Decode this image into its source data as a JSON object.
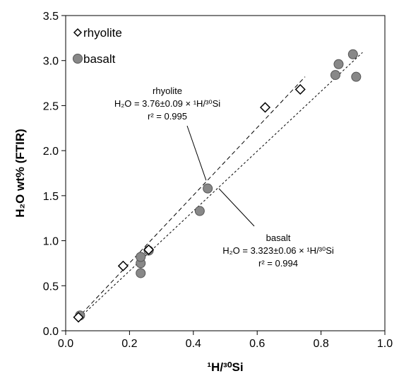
{
  "chart_data": {
    "type": "scatter",
    "xlabel": "¹H/³⁰Si",
    "ylabel": "H₂O wt% (FTIR)",
    "xlim": [
      0,
      1.0
    ],
    "ylim": [
      0,
      3.5
    ],
    "x_ticks": [
      0,
      0.2,
      0.4,
      0.6,
      0.8,
      1.0
    ],
    "x_tick_labels": [
      "0.0",
      "0.2",
      "0.4",
      "0.6",
      "0.8",
      "1.0"
    ],
    "y_ticks": [
      0,
      0.5,
      1.0,
      1.5,
      2.0,
      2.5,
      3.0,
      3.5
    ],
    "y_tick_labels": [
      "0.0",
      "0.5",
      "1.0",
      "1.5",
      "2.0",
      "2.5",
      "3.0",
      "3.5"
    ],
    "grid": false,
    "legend_position": "top-left",
    "series": [
      {
        "name": "rhyolite",
        "marker": "diamond",
        "fill": "#ffffff",
        "stroke": "#000000",
        "x": [
          0.04,
          0.18,
          0.26,
          0.625,
          0.735
        ],
        "y": [
          0.15,
          0.72,
          0.9,
          2.48,
          2.68
        ]
      },
      {
        "name": "basalt",
        "marker": "circle",
        "fill": "#888888",
        "stroke": "#555555",
        "x": [
          0.045,
          0.235,
          0.235,
          0.235,
          0.26,
          0.42,
          0.445,
          0.845,
          0.855,
          0.9,
          0.91
        ],
        "y": [
          0.17,
          0.64,
          0.75,
          0.82,
          0.89,
          1.33,
          1.58,
          2.84,
          2.96,
          3.07,
          2.82
        ]
      }
    ],
    "fits": [
      {
        "series": "rhyolite",
        "dash": "6,4",
        "x_range": [
          0.035,
          0.75
        ],
        "slope": 3.76,
        "annotation": [
          "rhyolite",
          "H₂O = 3.76±0.09 × ¹H/³⁰Si",
          "r² = 0.995"
        ]
      },
      {
        "series": "basalt",
        "dash": "3,3",
        "x_range": [
          0.035,
          0.93
        ],
        "slope": 3.323,
        "annotation": [
          "basalt",
          "H₂O = 3.323±0.06 × ¹H/³⁰Si",
          "r² = 0.994"
        ]
      }
    ]
  }
}
